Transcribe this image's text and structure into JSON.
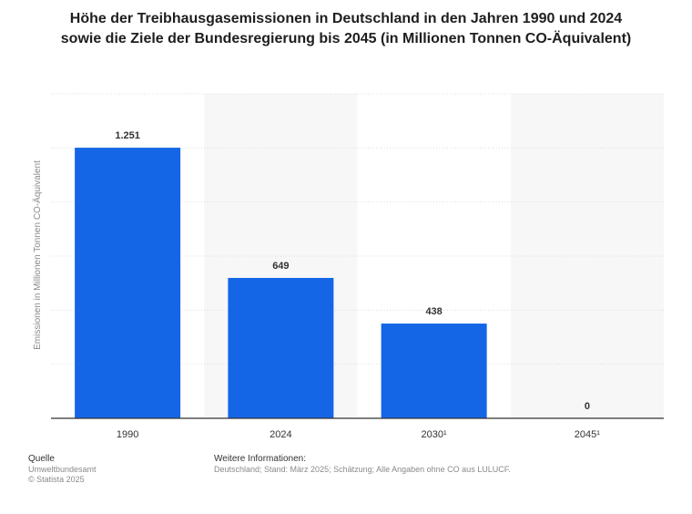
{
  "chart_data": {
    "type": "bar",
    "title": "Höhe der Treibhausgasemissionen in Deutschland in den Jahren 1990 und 2024 sowie die Ziele der Bundesregierung bis 2045 (in Millionen Tonnen CO-Äquivalent)",
    "categories": [
      "1990",
      "2024",
      "2030¹",
      "2045¹"
    ],
    "values": [
      1251,
      649,
      438,
      0
    ],
    "value_labels": [
      "1.251",
      "649",
      "438",
      "0"
    ],
    "xlabel": "",
    "ylabel": "Emissionen in Millionen Tonnen CO-Äquivalent",
    "ylim": [
      0,
      1500
    ],
    "grid": true,
    "legend": "none",
    "colors": {
      "bar": "#1466e6",
      "band": "#f7f7f7",
      "grid": "#dddddd",
      "axis": "#333333"
    }
  },
  "footer": {
    "source_heading": "Quelle",
    "source_name": "Umweltbundesamt",
    "copyright": "© Statista 2025",
    "info_heading": "Weitere Informationen:",
    "info_text": "Deutschland; Stand: März 2025; Schätzung; Alle Angaben ohne CO aus LULUCF."
  }
}
